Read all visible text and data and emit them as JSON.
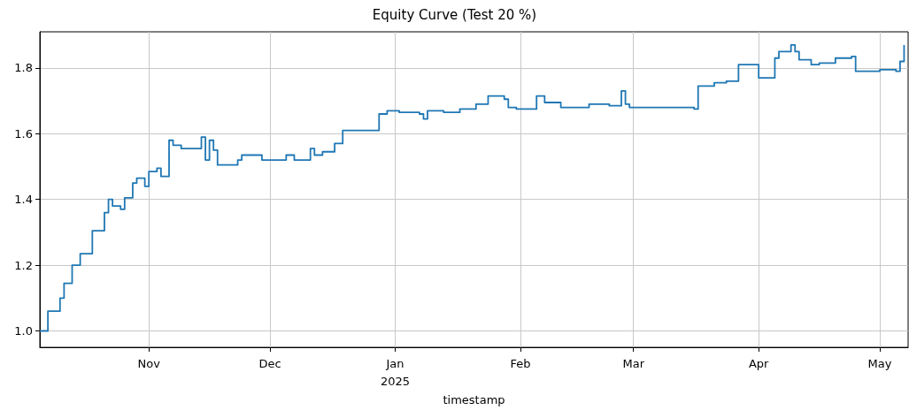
{
  "chart_data": {
    "type": "step",
    "title": "Equity Curve (Test 20 %)",
    "xlabel": "timestamp",
    "x": [
      "2024-10-05",
      "2024-10-06",
      "2024-10-07",
      "2024-10-09",
      "2024-10-10",
      "2024-10-11",
      "2024-10-13",
      "2024-10-14",
      "2024-10-15",
      "2024-10-17",
      "2024-10-18",
      "2024-10-21",
      "2024-10-22",
      "2024-10-23",
      "2024-10-25",
      "2024-10-26",
      "2024-10-28",
      "2024-10-29",
      "2024-10-31",
      "2024-11-01",
      "2024-11-03",
      "2024-11-04",
      "2024-11-05",
      "2024-11-06",
      "2024-11-07",
      "2024-11-09",
      "2024-11-13",
      "2024-11-14",
      "2024-11-15",
      "2024-11-16",
      "2024-11-17",
      "2024-11-18",
      "2024-11-22",
      "2024-11-23",
      "2024-11-24",
      "2024-11-29",
      "2024-12-04",
      "2024-12-05",
      "2024-12-07",
      "2024-12-11",
      "2024-12-12",
      "2024-12-14",
      "2024-12-17",
      "2024-12-19",
      "2024-12-27",
      "2024-12-28",
      "2024-12-30",
      "2025-01-02",
      "2025-01-07",
      "2025-01-08",
      "2025-01-09",
      "2025-01-13",
      "2025-01-17",
      "2025-01-21",
      "2025-01-24",
      "2025-01-28",
      "2025-01-29",
      "2025-01-31",
      "2025-02-05",
      "2025-02-07",
      "2025-02-11",
      "2025-02-18",
      "2025-02-23",
      "2025-02-26",
      "2025-02-27",
      "2025-02-28",
      "2025-03-13",
      "2025-03-16",
      "2025-03-17",
      "2025-03-21",
      "2025-03-24",
      "2025-03-27",
      "2025-03-31",
      "2025-04-01",
      "2025-04-04",
      "2025-04-05",
      "2025-04-06",
      "2025-04-09",
      "2025-04-10",
      "2025-04-11",
      "2025-04-14",
      "2025-04-16",
      "2025-04-20",
      "2025-04-24",
      "2025-04-25",
      "2025-05-01",
      "2025-05-04",
      "2025-05-05",
      "2025-05-06",
      "2025-05-07"
    ],
    "series": [
      {
        "color": "#1f77b4",
        "values": [
          1.0,
          1.0,
          1.06,
          1.06,
          1.1,
          1.145,
          1.2,
          1.2,
          1.235,
          1.235,
          1.305,
          1.36,
          1.4,
          1.38,
          1.37,
          1.405,
          1.45,
          1.465,
          1.44,
          1.485,
          1.495,
          1.47,
          1.47,
          1.58,
          1.565,
          1.555,
          1.555,
          1.59,
          1.52,
          1.58,
          1.55,
          1.505,
          1.505,
          1.52,
          1.535,
          1.52,
          1.52,
          1.535,
          1.52,
          1.555,
          1.535,
          1.545,
          1.57,
          1.61,
          1.61,
          1.66,
          1.67,
          1.665,
          1.66,
          1.645,
          1.67,
          1.665,
          1.675,
          1.69,
          1.715,
          1.705,
          1.68,
          1.675,
          1.715,
          1.695,
          1.68,
          1.69,
          1.685,
          1.73,
          1.69,
          1.68,
          1.68,
          1.675,
          1.745,
          1.755,
          1.76,
          1.81,
          1.81,
          1.77,
          1.77,
          1.83,
          1.85,
          1.87,
          1.85,
          1.825,
          1.81,
          1.815,
          1.83,
          1.835,
          1.79,
          1.795,
          1.795,
          1.79,
          1.82,
          1.87
        ]
      }
    ],
    "xlim": [
      "2024-10-05",
      "2025-05-08"
    ],
    "xticks": [
      {
        "value": "2024-11-01",
        "label": "Nov"
      },
      {
        "value": "2024-12-01",
        "label": "Dec"
      },
      {
        "value": "2025-01-01",
        "label": "Jan\n2025"
      },
      {
        "value": "2025-02-01",
        "label": "Feb"
      },
      {
        "value": "2025-03-01",
        "label": "Mar"
      },
      {
        "value": "2025-04-01",
        "label": "Apr"
      },
      {
        "value": "2025-05-01",
        "label": "May"
      }
    ],
    "ylim": [
      0.95,
      1.91
    ],
    "yticks": [
      {
        "value": 1.0,
        "label": "1.0"
      },
      {
        "value": 1.2,
        "label": "1.2"
      },
      {
        "value": 1.4,
        "label": "1.4"
      },
      {
        "value": 1.6,
        "label": "1.6"
      },
      {
        "value": 1.8,
        "label": "1.8"
      }
    ],
    "grid": true
  }
}
